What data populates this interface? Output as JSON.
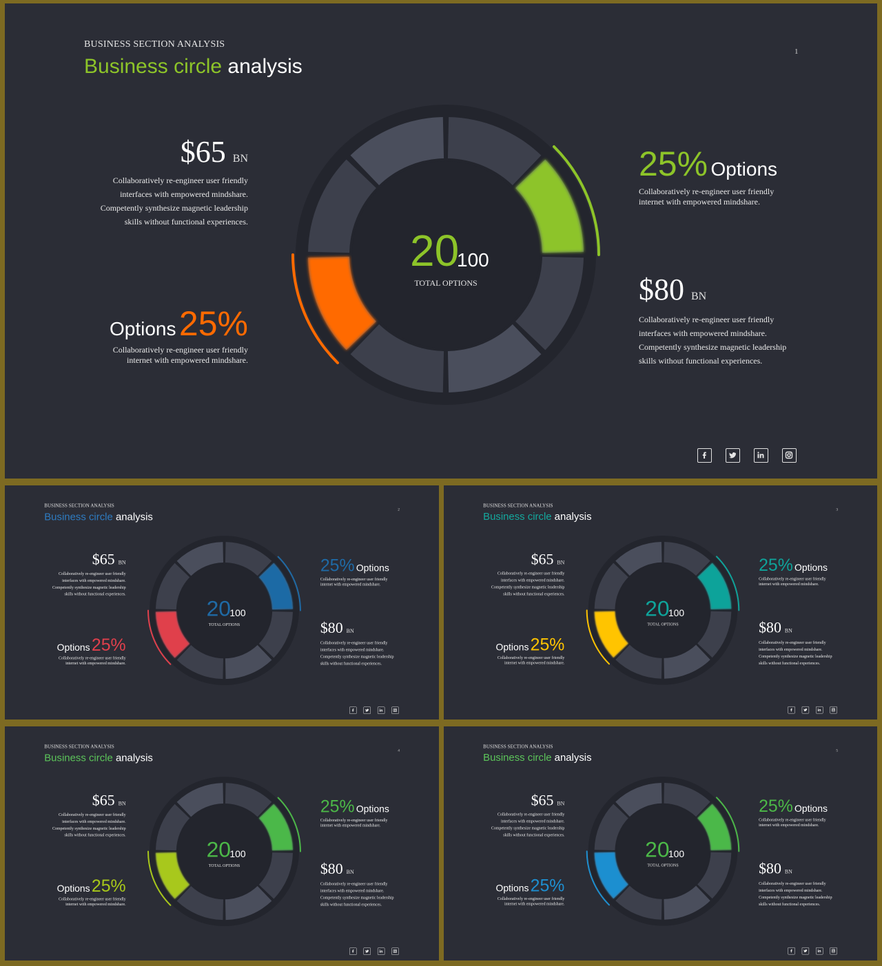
{
  "slides": [
    {
      "page": "1",
      "kicker": "BUSINESS SECTION ANALYSIS",
      "title_accent": "Business circle",
      "title_rest": " analysis",
      "accent_top": "#8dc429",
      "accent_left": "#ff6a00",
      "center_value": "20",
      "center_total": "100",
      "center_label": "TOTAL OPTIONS",
      "money_left": "$65",
      "money_left_unit": "BN",
      "money_left_desc": [
        "Collaboratively re-engineer user friendly",
        "interfaces with empowered mindshare.",
        "Competently synthesize magnetic leadership",
        "skills without functional experiences."
      ],
      "pct_right": "25%",
      "pct_right_label": "Options",
      "pct_right_desc": [
        "Collaboratively re-engineer user friendly",
        "internet with empowered mindshare."
      ],
      "pct_left": "25%",
      "pct_left_label": "Options",
      "pct_left_desc": [
        "Collaboratively re-engineer user friendly",
        "internet with empowered mindshare."
      ],
      "money_right": "$80",
      "money_right_unit": "BN",
      "money_right_desc": [
        "Collaboratively re-engineer user friendly",
        "interfaces with empowered mindshare.",
        "Competently synthesize magnetic leadership",
        "skills without functional experiences."
      ],
      "title_color": "#8dc429"
    },
    {
      "page": "2",
      "kicker": "BUSINESS SECTION ANALYSIS",
      "title_accent": "Business circle",
      "title_rest": " analysis",
      "accent_top": "#1f6aa5",
      "accent_left": "#e0404c",
      "center_value": "20",
      "center_total": "100",
      "center_label": "TOTAL OPTIONS",
      "money_left": "$65",
      "money_left_unit": "BN",
      "money_left_desc": [
        "Collaboratively re-engineer user friendly",
        "interfaces with empowered mindshare.",
        "Competently synthesize magnetic leadership",
        "skills without functional experiences."
      ],
      "pct_right": "25%",
      "pct_right_label": "Options",
      "pct_right_desc": [
        "Collaboratively re-engineer user friendly",
        "internet with empowered mindshare."
      ],
      "pct_left": "25%",
      "pct_left_label": "Options",
      "pct_left_desc": [
        "Collaboratively re-engineer user friendly",
        "internet with empowered mindshare."
      ],
      "money_right": "$80",
      "money_right_unit": "BN",
      "money_right_desc": [
        "Collaboratively re-engineer user friendly",
        "interfaces with empowered mindshare.",
        "Competently synthesize magnetic leadership",
        "skills without functional experiences."
      ],
      "title_color": "#2e7bc0"
    },
    {
      "page": "3",
      "kicker": "BUSINESS SECTION ANALYSIS",
      "title_accent": "Business circle",
      "title_rest": " analysis",
      "accent_top": "#0fa39a",
      "accent_left": "#ffc400",
      "center_value": "20",
      "center_total": "100",
      "center_label": "TOTAL OPTIONS",
      "money_left": "$65",
      "money_left_unit": "BN",
      "money_left_desc": [
        "Collaboratively re-engineer user friendly",
        "interfaces with empowered mindshare.",
        "Competently synthesize magnetic leadership",
        "skills without functional experiences."
      ],
      "pct_right": "25%",
      "pct_right_label": "Options",
      "pct_right_desc": [
        "Collaboratively re-engineer user friendly",
        "internet with empowered mindshare."
      ],
      "pct_left": "25%",
      "pct_left_label": "Options",
      "pct_left_desc": [
        "Collaboratively re-engineer user friendly",
        "internet with empowered mindshare."
      ],
      "money_right": "$80",
      "money_right_unit": "BN",
      "money_right_desc": [
        "Collaboratively re-engineer user friendly",
        "interfaces with empowered mindshare.",
        "Competently synthesize magnetic leadership",
        "skills without functional experiences."
      ],
      "title_color": "#14a89d"
    },
    {
      "page": "4",
      "kicker": "BUSINESS SECTION ANALYSIS",
      "title_accent": "Business circle",
      "title_rest": " analysis",
      "accent_top": "#4cb848",
      "accent_left": "#a8c81a",
      "center_value": "20",
      "center_total": "100",
      "center_label": "TOTAL OPTIONS",
      "money_left": "$65",
      "money_left_unit": "BN",
      "money_left_desc": [
        "Collaboratively re-engineer user friendly",
        "interfaces with empowered mindshare.",
        "Competently synthesize magnetic leadership",
        "skills without functional experiences."
      ],
      "pct_right": "25%",
      "pct_right_label": "Options",
      "pct_right_desc": [
        "Collaboratively re-engineer user friendly",
        "internet with empowered mindshare."
      ],
      "pct_left": "25%",
      "pct_left_label": "Options",
      "pct_left_desc": [
        "Collaboratively re-engineer user friendly",
        "internet with empowered mindshare."
      ],
      "money_right": "$80",
      "money_right_unit": "BN",
      "money_right_desc": [
        "Collaboratively re-engineer user friendly",
        "interfaces with empowered mindshare.",
        "Competently synthesize magnetic leadership",
        "skills without functional experiences."
      ],
      "title_color": "#5cc45a"
    },
    {
      "page": "5",
      "kicker": "BUSINESS SECTION ANALYSIS",
      "title_accent": "Business circle",
      "title_rest": " analysis",
      "accent_top": "#4cb848",
      "accent_left": "#1e8fd0",
      "center_value": "20",
      "center_total": "100",
      "center_label": "TOTAL OPTIONS",
      "money_left": "$65",
      "money_left_unit": "BN",
      "money_left_desc": [
        "Collaboratively re-engineer user friendly",
        "interfaces with empowered mindshare.",
        "Competently synthesize magnetic leadership",
        "skills without functional experiences."
      ],
      "pct_right": "25%",
      "pct_right_label": "Options",
      "pct_right_desc": [
        "Collaboratively re-engineer user friendly",
        "internet with empowered mindshare."
      ],
      "pct_left": "25%",
      "pct_left_label": "Options",
      "pct_left_desc": [
        "Collaboratively re-engineer user friendly",
        "internet with empowered mindshare."
      ],
      "money_right": "$80",
      "money_right_unit": "BN",
      "money_right_desc": [
        "Collaboratively re-engineer user friendly",
        "interfaces with empowered mindshare.",
        "Competently synthesize magnetic leadership",
        "skills without functional experiences."
      ],
      "title_color": "#5cc45a"
    }
  ],
  "social_icons": [
    "facebook-icon",
    "twitter-icon",
    "linkedin-icon",
    "instagram-icon"
  ]
}
